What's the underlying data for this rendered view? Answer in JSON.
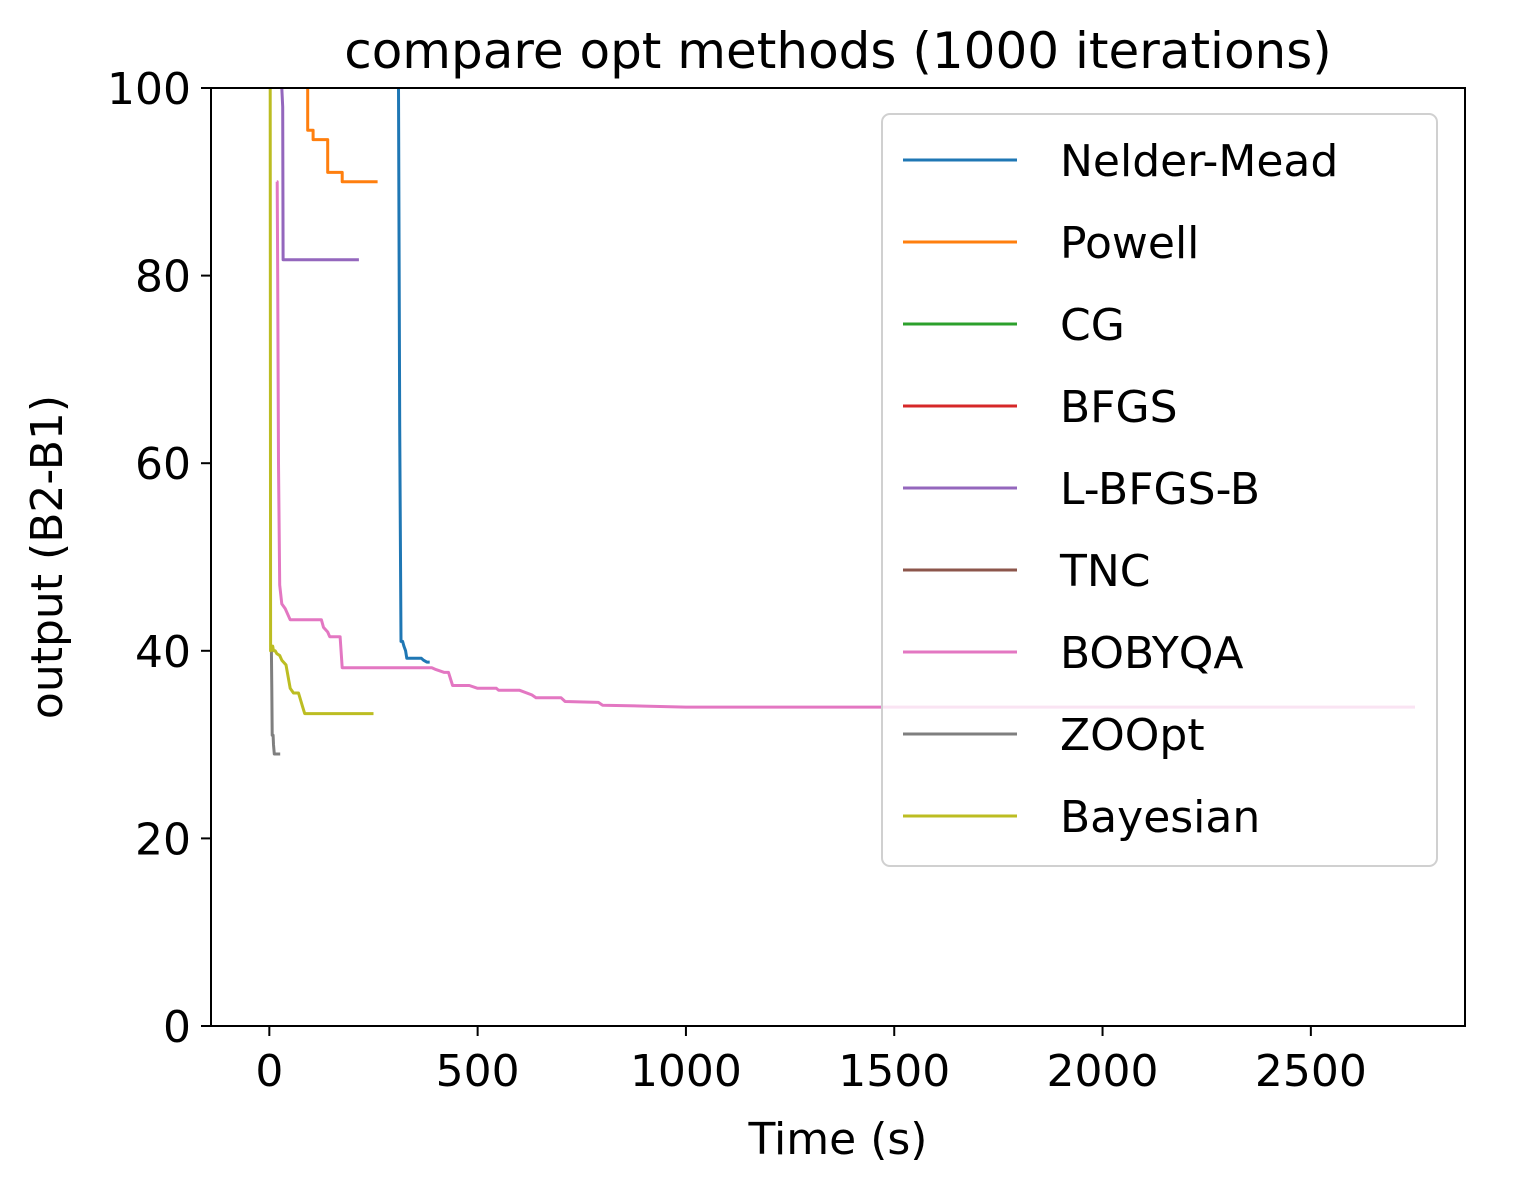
{
  "chart_data": {
    "type": "line",
    "title": "compare opt methods  (1000 iterations)",
    "xlabel": "Time (s)",
    "ylabel": "output (B2-B1)",
    "xlim": [
      -140,
      2870
    ],
    "ylim": [
      0,
      100
    ],
    "xticks": [
      0,
      500,
      1000,
      1500,
      2000,
      2500
    ],
    "yticks": [
      0,
      20,
      40,
      60,
      80,
      100
    ],
    "grid": false,
    "legend_position": "top-right",
    "series": [
      {
        "name": "Nelder-Mead",
        "color": "#1f77b4",
        "x": [
          310,
          313,
          316,
          320,
          323,
          327,
          330,
          333,
          345,
          365,
          370,
          378,
          385
        ],
        "y": [
          100,
          64,
          41,
          41,
          40.5,
          40,
          39.2,
          39.2,
          39.2,
          39.2,
          39,
          38.8,
          38.8
        ]
      },
      {
        "name": "Powell",
        "color": "#ff7f0e",
        "x": [
          90,
          92,
          92,
          105,
          105,
          120,
          140,
          140,
          170,
          175,
          175,
          260
        ],
        "y": [
          100,
          100,
          95.5,
          95.5,
          94.5,
          94.5,
          94.5,
          91,
          91,
          91,
          90,
          90
        ]
      },
      {
        "name": "CG",
        "color": "#2ca02c",
        "x": [],
        "y": []
      },
      {
        "name": "BFGS",
        "color": "#d62728",
        "x": [],
        "y": []
      },
      {
        "name": "L-BFGS-B",
        "color": "#9467bd",
        "x": [
          28,
          30,
          32,
          33,
          36,
          215
        ],
        "y": [
          100,
          100,
          98,
          81.7,
          81.7,
          81.7
        ]
      },
      {
        "name": "TNC",
        "color": "#8c564b",
        "x": [],
        "y": []
      },
      {
        "name": "BOBYQA",
        "color": "#e377c2",
        "x": [
          18,
          19,
          20,
          22,
          25,
          30,
          38,
          50,
          65,
          90,
          105,
          125,
          130,
          140,
          145,
          160,
          170,
          175,
          200,
          260,
          300,
          360,
          390,
          400,
          420,
          430,
          440,
          480,
          500,
          545,
          550,
          600,
          630,
          640,
          700,
          710,
          790,
          800,
          900,
          1000,
          1200,
          1500,
          2000,
          2750
        ],
        "y": [
          90,
          90,
          80,
          60,
          47,
          45,
          44.5,
          43.3,
          43.3,
          43.3,
          43.3,
          43.3,
          42.5,
          42,
          41.5,
          41.5,
          41.5,
          38.2,
          38.2,
          38.2,
          38.2,
          38.2,
          38.2,
          38,
          37.7,
          37.7,
          36.3,
          36.3,
          36,
          36,
          35.8,
          35.8,
          35.3,
          35,
          35,
          34.6,
          34.5,
          34.2,
          34.1,
          34,
          34,
          34,
          34,
          34
        ]
      },
      {
        "name": "ZOOpt",
        "color": "#7f7f7f",
        "x": [
          5,
          6,
          7,
          9,
          10,
          12,
          14,
          16,
          20,
          26
        ],
        "y": [
          40,
          36,
          31,
          31,
          30,
          29,
          29,
          29,
          29,
          29
        ]
      },
      {
        "name": "Bayesian",
        "color": "#bcbd22",
        "x": [
          2,
          3,
          5,
          8,
          10,
          14,
          18,
          25,
          30,
          40,
          50,
          58,
          70,
          80,
          85,
          100,
          180,
          250
        ],
        "y": [
          100,
          40,
          40.5,
          40.5,
          40,
          40,
          39.7,
          39.5,
          39,
          38.5,
          36,
          35.5,
          35.5,
          34,
          33.3,
          33.3,
          33.3,
          33.3
        ]
      }
    ]
  }
}
